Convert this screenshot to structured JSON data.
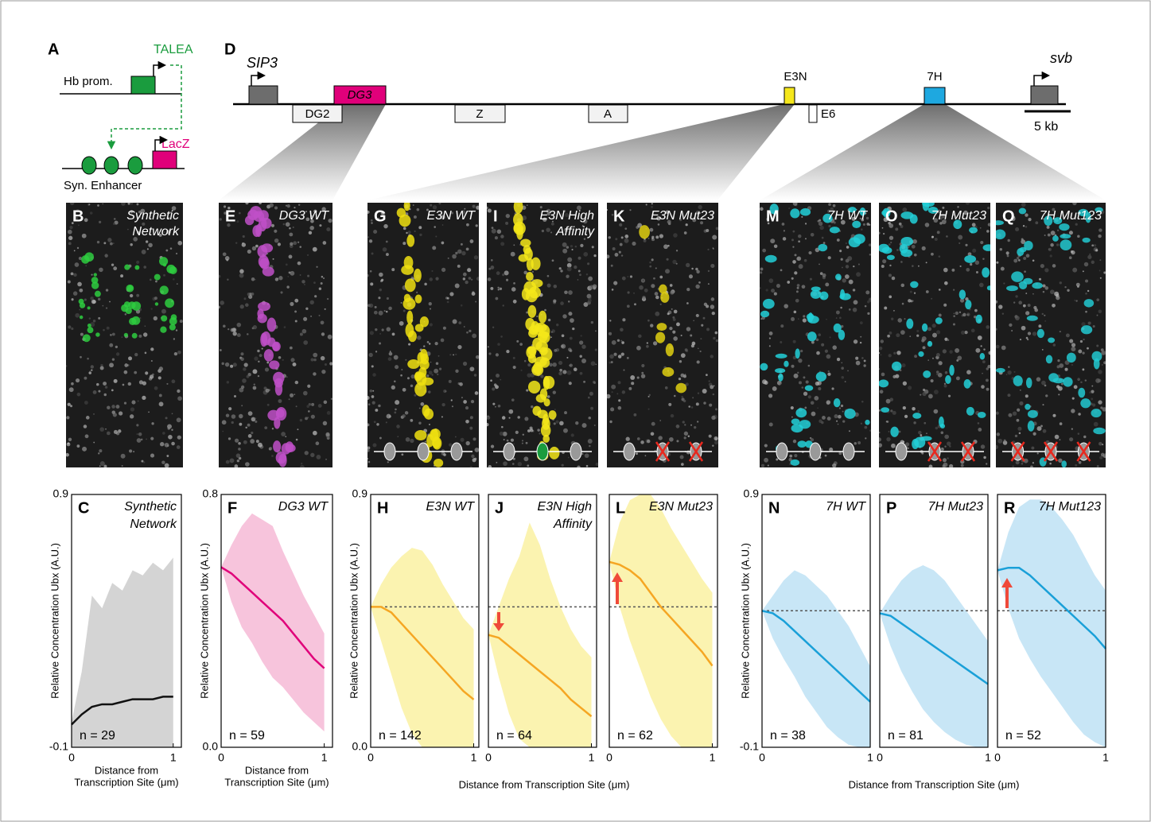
{
  "panel_a": {
    "panel": "A",
    "talea": "TALEA",
    "hb": "Hb prom.",
    "lacz": "LacZ",
    "enhancer": "Syn. Enhancer"
  },
  "panel_d": {
    "panel": "D",
    "sip3": "SIP3",
    "svb": "svb",
    "dg2": "DG2",
    "dg3": "DG3",
    "z": "Z",
    "a": "A",
    "e3n": "E3N",
    "e6": "E6",
    "h7": "7H",
    "scale": "5 kb"
  },
  "images": [
    {
      "panel": "B",
      "title": [
        "Synthetic",
        "Network"
      ]
    },
    {
      "panel": "E",
      "title": [
        "DG3 WT"
      ]
    },
    {
      "panel": "G",
      "title": [
        "E3N WT"
      ]
    },
    {
      "panel": "I",
      "title": [
        "E3N High",
        "Affinity"
      ]
    },
    {
      "panel": "K",
      "title": [
        "E3N Mut23"
      ]
    },
    {
      "panel": "M",
      "title": [
        "7H WT"
      ]
    },
    {
      "panel": "O",
      "title": [
        "7H Mut23"
      ]
    },
    {
      "panel": "Q",
      "title": [
        "7H Mut123"
      ]
    }
  ],
  "shared_xlabels": [
    "Distance from Transcription Site (μm)",
    "Distance from Transcription Site (μm)"
  ],
  "chart_data": [
    {
      "type": "line",
      "panel": "C",
      "title": [
        "Synthetic",
        "Network"
      ],
      "n_label": "n = 29",
      "ylabel": "Relative Concentration Ubx (A.U.)",
      "xlabel": [
        "Distance from",
        "Transcription Site (μm)"
      ],
      "xlim": [
        0,
        1.08
      ],
      "xticks": [
        0,
        1
      ],
      "ylim": [
        -0.1,
        0.9
      ],
      "yticks": [
        -0.1,
        0.9
      ],
      "x": [
        0,
        0.1,
        0.2,
        0.3,
        0.4,
        0.5,
        0.6,
        0.7,
        0.8,
        0.9,
        1.0
      ],
      "series": [
        {
          "color": "#111111",
          "band_color": "#d4d4d4",
          "values": [
            -0.01,
            0.03,
            0.06,
            0.07,
            0.07,
            0.08,
            0.09,
            0.09,
            0.09,
            0.1,
            0.1
          ],
          "upper": [
            0.0,
            0.2,
            0.5,
            0.45,
            0.55,
            0.52,
            0.6,
            0.58,
            0.63,
            0.6,
            0.65
          ],
          "lower": [
            -0.1,
            -0.1,
            -0.1,
            -0.1,
            -0.1,
            -0.1,
            -0.1,
            -0.1,
            -0.1,
            -0.1,
            -0.1
          ]
        }
      ]
    },
    {
      "type": "line",
      "panel": "F",
      "title": [
        "DG3 WT"
      ],
      "n_label": "n = 59",
      "ylabel": "Relative Concentration Ubx (A.U.)",
      "xlabel": [
        "Distance from",
        "Transcription Site (μm)"
      ],
      "xlim": [
        0,
        1.08
      ],
      "xticks": [
        0,
        1
      ],
      "ylim": [
        0,
        0.8
      ],
      "yticks": [
        {
          "value": 0,
          "label": "0.0"
        },
        0.8
      ],
      "x": [
        0,
        0.1,
        0.2,
        0.3,
        0.4,
        0.5,
        0.6,
        0.7,
        0.8,
        0.9,
        1.0
      ],
      "series": [
        {
          "color": "#e0007a",
          "band_color": "#f7c4dc",
          "values": [
            0.57,
            0.55,
            0.52,
            0.49,
            0.46,
            0.43,
            0.4,
            0.36,
            0.32,
            0.28,
            0.25
          ],
          "upper": [
            0.57,
            0.64,
            0.7,
            0.74,
            0.72,
            0.7,
            0.62,
            0.55,
            0.48,
            0.42,
            0.36
          ],
          "lower": [
            0.57,
            0.46,
            0.38,
            0.33,
            0.27,
            0.22,
            0.19,
            0.15,
            0.11,
            0.08,
            0.05
          ]
        }
      ]
    },
    {
      "type": "line",
      "panel": "H",
      "title": [
        "E3N WT"
      ],
      "n_label": "n = 142",
      "ylabel": "Relative Concentration Ubx (A.U.)",
      "xlim": [
        0,
        1.05
      ],
      "xticks": [
        0,
        1
      ],
      "ylim": [
        0,
        0.9
      ],
      "yticks": [
        {
          "value": 0,
          "label": "0.0"
        },
        0.9
      ],
      "reference": 0.5,
      "x": [
        0,
        0.1,
        0.2,
        0.3,
        0.4,
        0.5,
        0.6,
        0.7,
        0.8,
        0.9,
        1.0
      ],
      "series": [
        {
          "color": "#f5a623",
          "band_color": "#fbf3b0",
          "values": [
            0.5,
            0.5,
            0.48,
            0.44,
            0.4,
            0.36,
            0.32,
            0.28,
            0.24,
            0.2,
            0.17
          ],
          "upper": [
            0.5,
            0.58,
            0.64,
            0.68,
            0.71,
            0.7,
            0.65,
            0.58,
            0.52,
            0.46,
            0.42
          ],
          "lower": [
            0.5,
            0.38,
            0.26,
            0.14,
            0.05,
            0,
            0,
            0,
            0,
            0,
            0
          ]
        }
      ]
    },
    {
      "type": "line",
      "panel": "J",
      "title": [
        "E3N High",
        "Affinity"
      ],
      "n_label": "n = 64",
      "xlim": [
        0,
        1.05
      ],
      "xticks": [
        0,
        1
      ],
      "ylim": [
        0,
        0.9
      ],
      "reference": 0.5,
      "x": [
        0,
        0.1,
        0.2,
        0.3,
        0.4,
        0.5,
        0.6,
        0.7,
        0.8,
        0.9,
        1.0
      ],
      "series": [
        {
          "color": "#f5a623",
          "band_color": "#fbf3b0",
          "values": [
            0.4,
            0.39,
            0.36,
            0.33,
            0.3,
            0.27,
            0.24,
            0.21,
            0.17,
            0.14,
            0.11
          ],
          "upper": [
            0.4,
            0.5,
            0.6,
            0.68,
            0.8,
            0.72,
            0.6,
            0.5,
            0.42,
            0.36,
            0.32
          ],
          "lower": [
            0.4,
            0.25,
            0.12,
            0.03,
            0,
            0,
            0,
            0,
            0,
            0,
            0
          ]
        }
      ]
    },
    {
      "type": "line",
      "panel": "L",
      "title": [
        "E3N Mut23"
      ],
      "n_label": "n = 62",
      "xlim": [
        0,
        1.05
      ],
      "xticks": [
        0,
        1
      ],
      "ylim": [
        0,
        0.9
      ],
      "reference": 0.5,
      "x": [
        0,
        0.1,
        0.2,
        0.3,
        0.4,
        0.5,
        0.6,
        0.7,
        0.8,
        0.9,
        1.0
      ],
      "series": [
        {
          "color": "#f5a623",
          "band_color": "#fbf3b0",
          "values": [
            0.66,
            0.65,
            0.63,
            0.6,
            0.55,
            0.5,
            0.46,
            0.42,
            0.38,
            0.34,
            0.29
          ],
          "upper": [
            0.66,
            0.8,
            0.88,
            0.9,
            0.9,
            0.85,
            0.78,
            0.72,
            0.66,
            0.6,
            0.55
          ],
          "lower": [
            0.66,
            0.5,
            0.38,
            0.28,
            0.18,
            0.1,
            0.04,
            0,
            0,
            0,
            0
          ]
        }
      ]
    },
    {
      "type": "line",
      "panel": "N",
      "title": [
        "7H WT"
      ],
      "n_label": "n = 38",
      "ylabel": "Relative Concentration Ubx (A.U.)",
      "xlim": [
        0,
        1.0
      ],
      "xticks": [
        0,
        1
      ],
      "ylim": [
        -0.1,
        0.9
      ],
      "yticks": [
        -0.1,
        0.9
      ],
      "reference": 0.44,
      "x": [
        0,
        0.1,
        0.2,
        0.3,
        0.4,
        0.5,
        0.6,
        0.7,
        0.8,
        0.9,
        1.0
      ],
      "series": [
        {
          "color": "#1aa0d8",
          "band_color": "#c8e6f6",
          "values": [
            0.44,
            0.43,
            0.4,
            0.36,
            0.32,
            0.28,
            0.24,
            0.2,
            0.16,
            0.12,
            0.08
          ],
          "upper": [
            0.44,
            0.5,
            0.56,
            0.6,
            0.58,
            0.54,
            0.5,
            0.44,
            0.38,
            0.3,
            0.22
          ],
          "lower": [
            0.44,
            0.33,
            0.25,
            0.18,
            0.1,
            0.04,
            -0.02,
            -0.06,
            -0.09,
            -0.1,
            -0.1
          ]
        }
      ]
    },
    {
      "type": "line",
      "panel": "P",
      "title": [
        "7H Mut23"
      ],
      "n_label": "n = 81",
      "xlim": [
        0,
        1.0
      ],
      "xticks": [
        0,
        1
      ],
      "ylim": [
        -0.1,
        0.9
      ],
      "reference": 0.44,
      "x": [
        0,
        0.1,
        0.2,
        0.3,
        0.4,
        0.5,
        0.6,
        0.7,
        0.8,
        0.9,
        1.0
      ],
      "series": [
        {
          "color": "#1aa0d8",
          "band_color": "#c8e6f6",
          "values": [
            0.43,
            0.42,
            0.39,
            0.36,
            0.33,
            0.3,
            0.27,
            0.24,
            0.21,
            0.18,
            0.15
          ],
          "upper": [
            0.43,
            0.5,
            0.56,
            0.6,
            0.62,
            0.6,
            0.56,
            0.5,
            0.44,
            0.38,
            0.32
          ],
          "lower": [
            0.43,
            0.3,
            0.2,
            0.12,
            0.05,
            0,
            -0.04,
            -0.07,
            -0.09,
            -0.1,
            -0.1
          ]
        }
      ]
    },
    {
      "type": "line",
      "panel": "R",
      "title": [
        "7H Mut123"
      ],
      "n_label": "n = 52",
      "xlim": [
        0,
        1.0
      ],
      "xticks": [
        0,
        1
      ],
      "ylim": [
        -0.1,
        0.9
      ],
      "reference": 0.44,
      "x": [
        0,
        0.1,
        0.2,
        0.3,
        0.4,
        0.5,
        0.6,
        0.7,
        0.8,
        0.9,
        1.0
      ],
      "series": [
        {
          "color": "#1aa0d8",
          "band_color": "#c8e6f6",
          "values": [
            0.6,
            0.61,
            0.61,
            0.58,
            0.54,
            0.5,
            0.46,
            0.42,
            0.38,
            0.34,
            0.29
          ],
          "upper": [
            0.6,
            0.75,
            0.85,
            0.88,
            0.88,
            0.85,
            0.8,
            0.74,
            0.66,
            0.58,
            0.52
          ],
          "lower": [
            0.6,
            0.45,
            0.33,
            0.25,
            0.18,
            0.12,
            0.06,
            0.0,
            -0.05,
            -0.08,
            -0.1
          ]
        }
      ]
    }
  ]
}
